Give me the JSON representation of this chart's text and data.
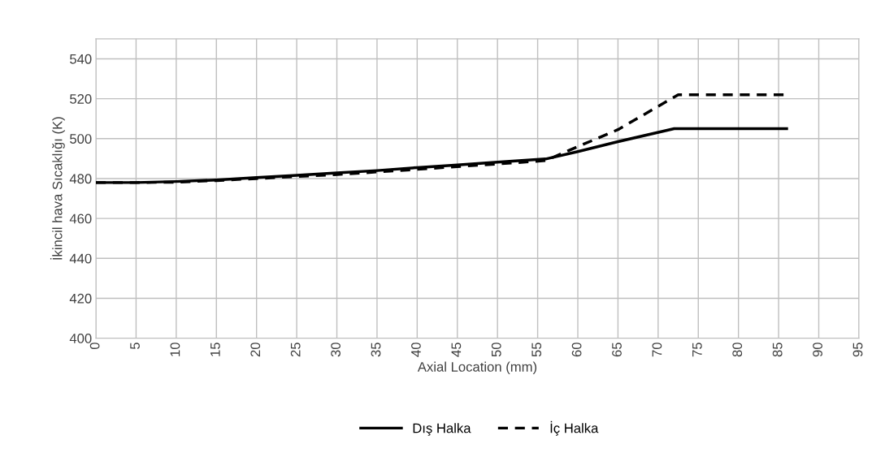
{
  "chart_data": {
    "type": "line",
    "xlabel": "Axial Location (mm)",
    "ylabel": "İkincil hava Sıcaklığı (K)",
    "xlim": [
      0,
      95
    ],
    "xticks": [
      0,
      5,
      10,
      15,
      20,
      25,
      30,
      35,
      40,
      45,
      50,
      55,
      60,
      65,
      70,
      75,
      80,
      85,
      90,
      95
    ],
    "ylim": [
      400,
      550
    ],
    "yticks": [
      400,
      420,
      440,
      460,
      480,
      500,
      520,
      540
    ],
    "grid": true,
    "legend": "bottom",
    "marker": "none",
    "series": [
      {
        "name": "Dış Halka",
        "color": "#000000",
        "line_style": "solid",
        "x": [
          0,
          5,
          10,
          15,
          20,
          25,
          30,
          35,
          40,
          45,
          50,
          56,
          60,
          65,
          72,
          86
        ],
        "values": [
          478,
          478,
          478.5,
          479.3,
          480.5,
          481.6,
          482.8,
          484,
          485.5,
          486.8,
          488.2,
          489.8,
          493.5,
          498.5,
          505,
          505
        ]
      },
      {
        "name": "İç Halka",
        "color": "#000000",
        "line_style": "dashed",
        "x": [
          0,
          5,
          10,
          15,
          20,
          25,
          30,
          35,
          40,
          45,
          50,
          56,
          60,
          65,
          72.5,
          86
        ],
        "values": [
          478,
          478,
          478.2,
          479,
          480,
          481,
          482,
          483.3,
          484.6,
          486,
          487.3,
          489,
          496,
          504.5,
          522,
          522
        ]
      }
    ]
  }
}
